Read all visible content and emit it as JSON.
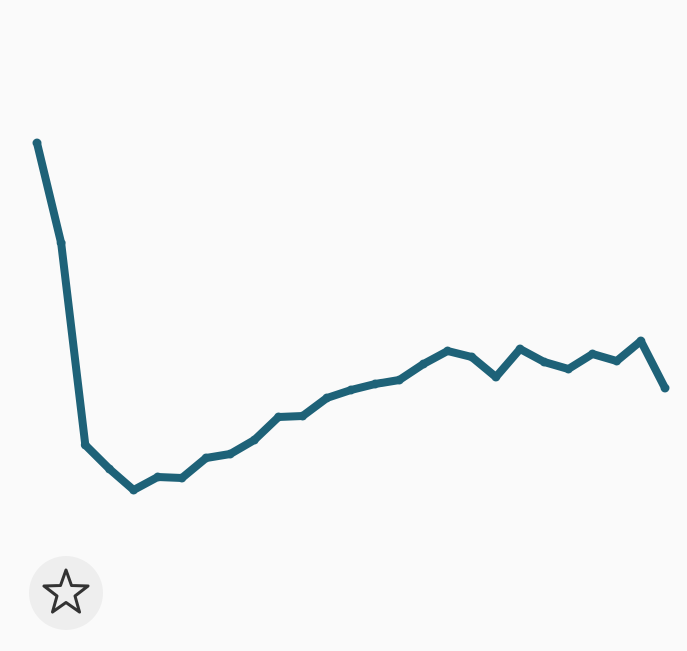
{
  "chart_data": {
    "type": "line",
    "x": [
      0,
      1,
      2,
      3,
      4,
      5,
      6,
      7,
      8,
      9,
      10,
      11,
      12,
      13,
      14,
      15,
      16,
      17,
      18,
      19,
      20,
      21,
      22,
      23,
      24,
      25,
      26
    ],
    "series": [
      {
        "color": "#1e6278",
        "values": [
          357,
          257,
          55,
          31,
          10,
          23,
          22,
          42,
          46,
          60,
          83,
          84,
          102,
          110,
          116,
          120,
          136,
          149,
          143,
          123,
          151,
          138,
          131,
          146,
          139,
          159,
          112
        ]
      }
    ],
    "xlim": [
      0,
      26
    ],
    "ylim": [
      0,
      400
    ]
  }
}
